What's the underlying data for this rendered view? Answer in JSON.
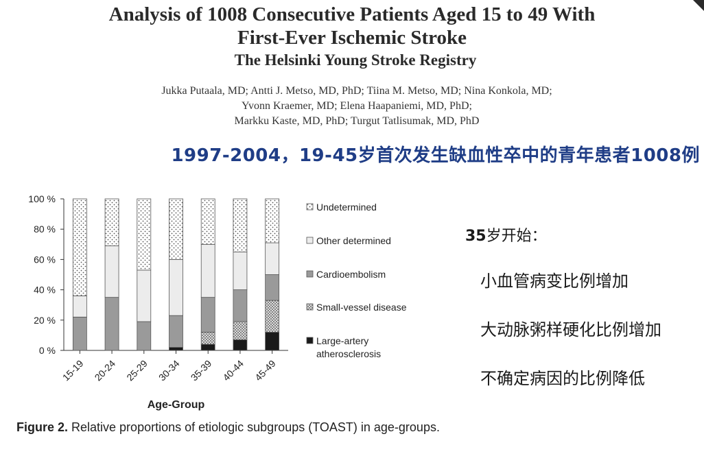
{
  "paper": {
    "title_line1": "Analysis of 1008 Consecutive Patients Aged 15 to 49 With",
    "title_line2": "First-Ever Ischemic Stroke",
    "subtitle": "The Helsinki Young Stroke Registry",
    "authors_line1": "Jukka Putaala, MD; Antti J. Metso, MD, PhD; Tiina M. Metso, MD; Nina Konkola, MD;",
    "authors_line2": "Yvonn Kraemer, MD; Elena Haapaniemi, MD, PhD;",
    "authors_line3": "Markku Kaste, MD, PhD; Turgut Tatlisumak, MD, PhD"
  },
  "headline": "1997-2004，19-45岁首次发生缺血性卒中的青年患者1008例",
  "caption": {
    "label": "Figure 2.",
    "text": " Relative proportions of etiologic subgroups (TOAST) in age-groups."
  },
  "notes": {
    "lead_bold": "35",
    "lead_rest": "岁开始：",
    "items": [
      "小血管病变比例增加",
      "大动脉粥样硬化比例增加",
      "不确定病因的比例降低"
    ]
  },
  "colors": {
    "headline": "#1f3d86",
    "large_artery": "#1a1a1a",
    "small_vessel": "#9a9a9a",
    "cardioembolism": "#b8b8b8",
    "other_determined": "#ececec",
    "undetermined": "#ffffff"
  },
  "chart_data": {
    "type": "bar",
    "stacked": true,
    "xlabel": "Age-Group",
    "ylabel": "",
    "ylim": [
      0,
      100
    ],
    "yticks": [
      "0 %",
      "20 %",
      "40 %",
      "60 %",
      "80 %",
      "100 %"
    ],
    "categories": [
      "15-19",
      "20-24",
      "25-29",
      "30-34",
      "35-39",
      "40-44",
      "45-49"
    ],
    "series": [
      {
        "name": "Large-artery atherosclerosis",
        "pattern": "solid-black",
        "values": [
          0,
          0,
          0,
          2,
          4,
          7,
          12
        ]
      },
      {
        "name": "Small-vessel disease",
        "pattern": "dots-dense",
        "values": [
          0,
          0,
          0,
          0,
          8,
          12,
          21
        ]
      },
      {
        "name": "Cardioembolism",
        "pattern": "dark-gray",
        "values": [
          22,
          35,
          19,
          21,
          23,
          21,
          17
        ]
      },
      {
        "name": "Other determined",
        "pattern": "light",
        "values": [
          14,
          34,
          34,
          37,
          35,
          25,
          21
        ]
      },
      {
        "name": "Undetermined",
        "pattern": "dots-sparse",
        "values": [
          64,
          31,
          47,
          40,
          30,
          35,
          29
        ]
      }
    ],
    "legend_order": [
      "Undetermined",
      "Other determined",
      "Cardioembolism",
      "Small-vessel disease",
      "Large-artery atherosclerosis"
    ],
    "legend_position": "right",
    "grid": false
  }
}
